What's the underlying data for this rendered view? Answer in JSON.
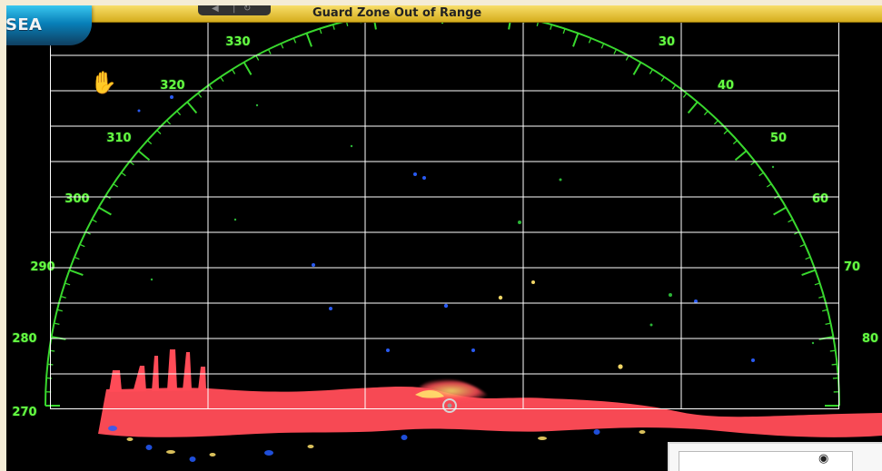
{
  "header": {
    "banner_text": "Guard Zone Out of Range",
    "logo_text": "SEA"
  },
  "radar": {
    "bearing_labels": [
      "330",
      "30",
      "320",
      "40",
      "310",
      "50",
      "300",
      "60",
      "290",
      "70",
      "280",
      "80",
      "270"
    ],
    "colors": {
      "ring": "#39d82e",
      "label": "#66ff42",
      "return_strong": "#ff4b57",
      "return_mid": "#ffe26b",
      "return_low": "#245cff",
      "background": "#000000",
      "grid": "#ffffff"
    }
  },
  "icons": {
    "hand": "hand-pointer-icon",
    "center": "vessel-center-icon"
  }
}
